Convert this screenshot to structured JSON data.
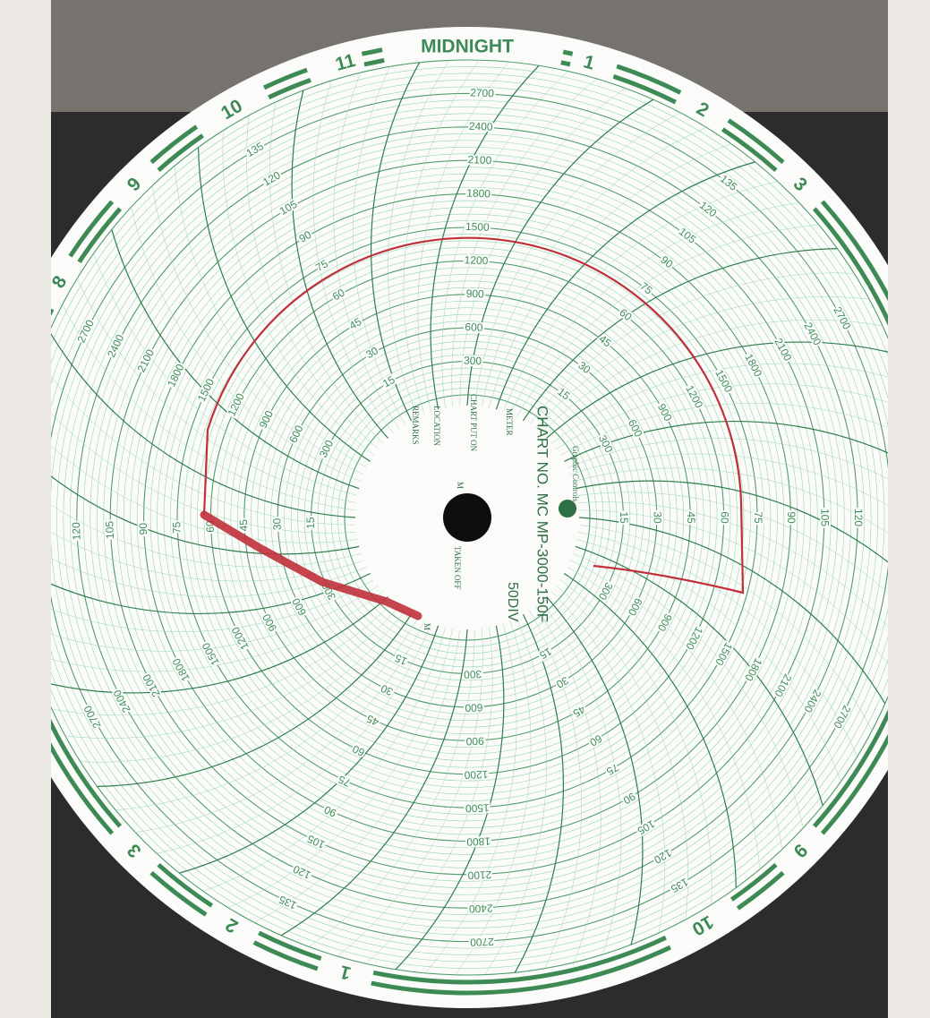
{
  "hours": [
    "MIDNIGHT",
    "1",
    "2",
    "3",
    null,
    null,
    null,
    null,
    null,
    "9",
    "10",
    null,
    null,
    "1",
    "2",
    "3",
    null,
    null,
    null,
    null,
    "8",
    "9",
    "10",
    "11"
  ],
  "pressure_scale": {
    "rlim": [
      0,
      3000
    ],
    "ticks": [
      300,
      600,
      900,
      1200,
      1500,
      1800,
      2100,
      2400,
      2700
    ]
  },
  "temperature_scale": {
    "rlim": [
      0,
      150
    ],
    "ticks": [
      15,
      30,
      45,
      60,
      75,
      90,
      105,
      120,
      135
    ]
  },
  "center": {
    "chart_no": "CHART NO. MC MP-3000-150F",
    "divisions": "50DIV",
    "maker": "Graphic Controls",
    "meter": "METER",
    "put_on": "CHART PUT ON",
    "location": "LOCATION",
    "remarks": "REMARKS",
    "put_on_unit": "M",
    "taken_off": "TAKEN OFF",
    "taken_off_unit": "M"
  }
}
